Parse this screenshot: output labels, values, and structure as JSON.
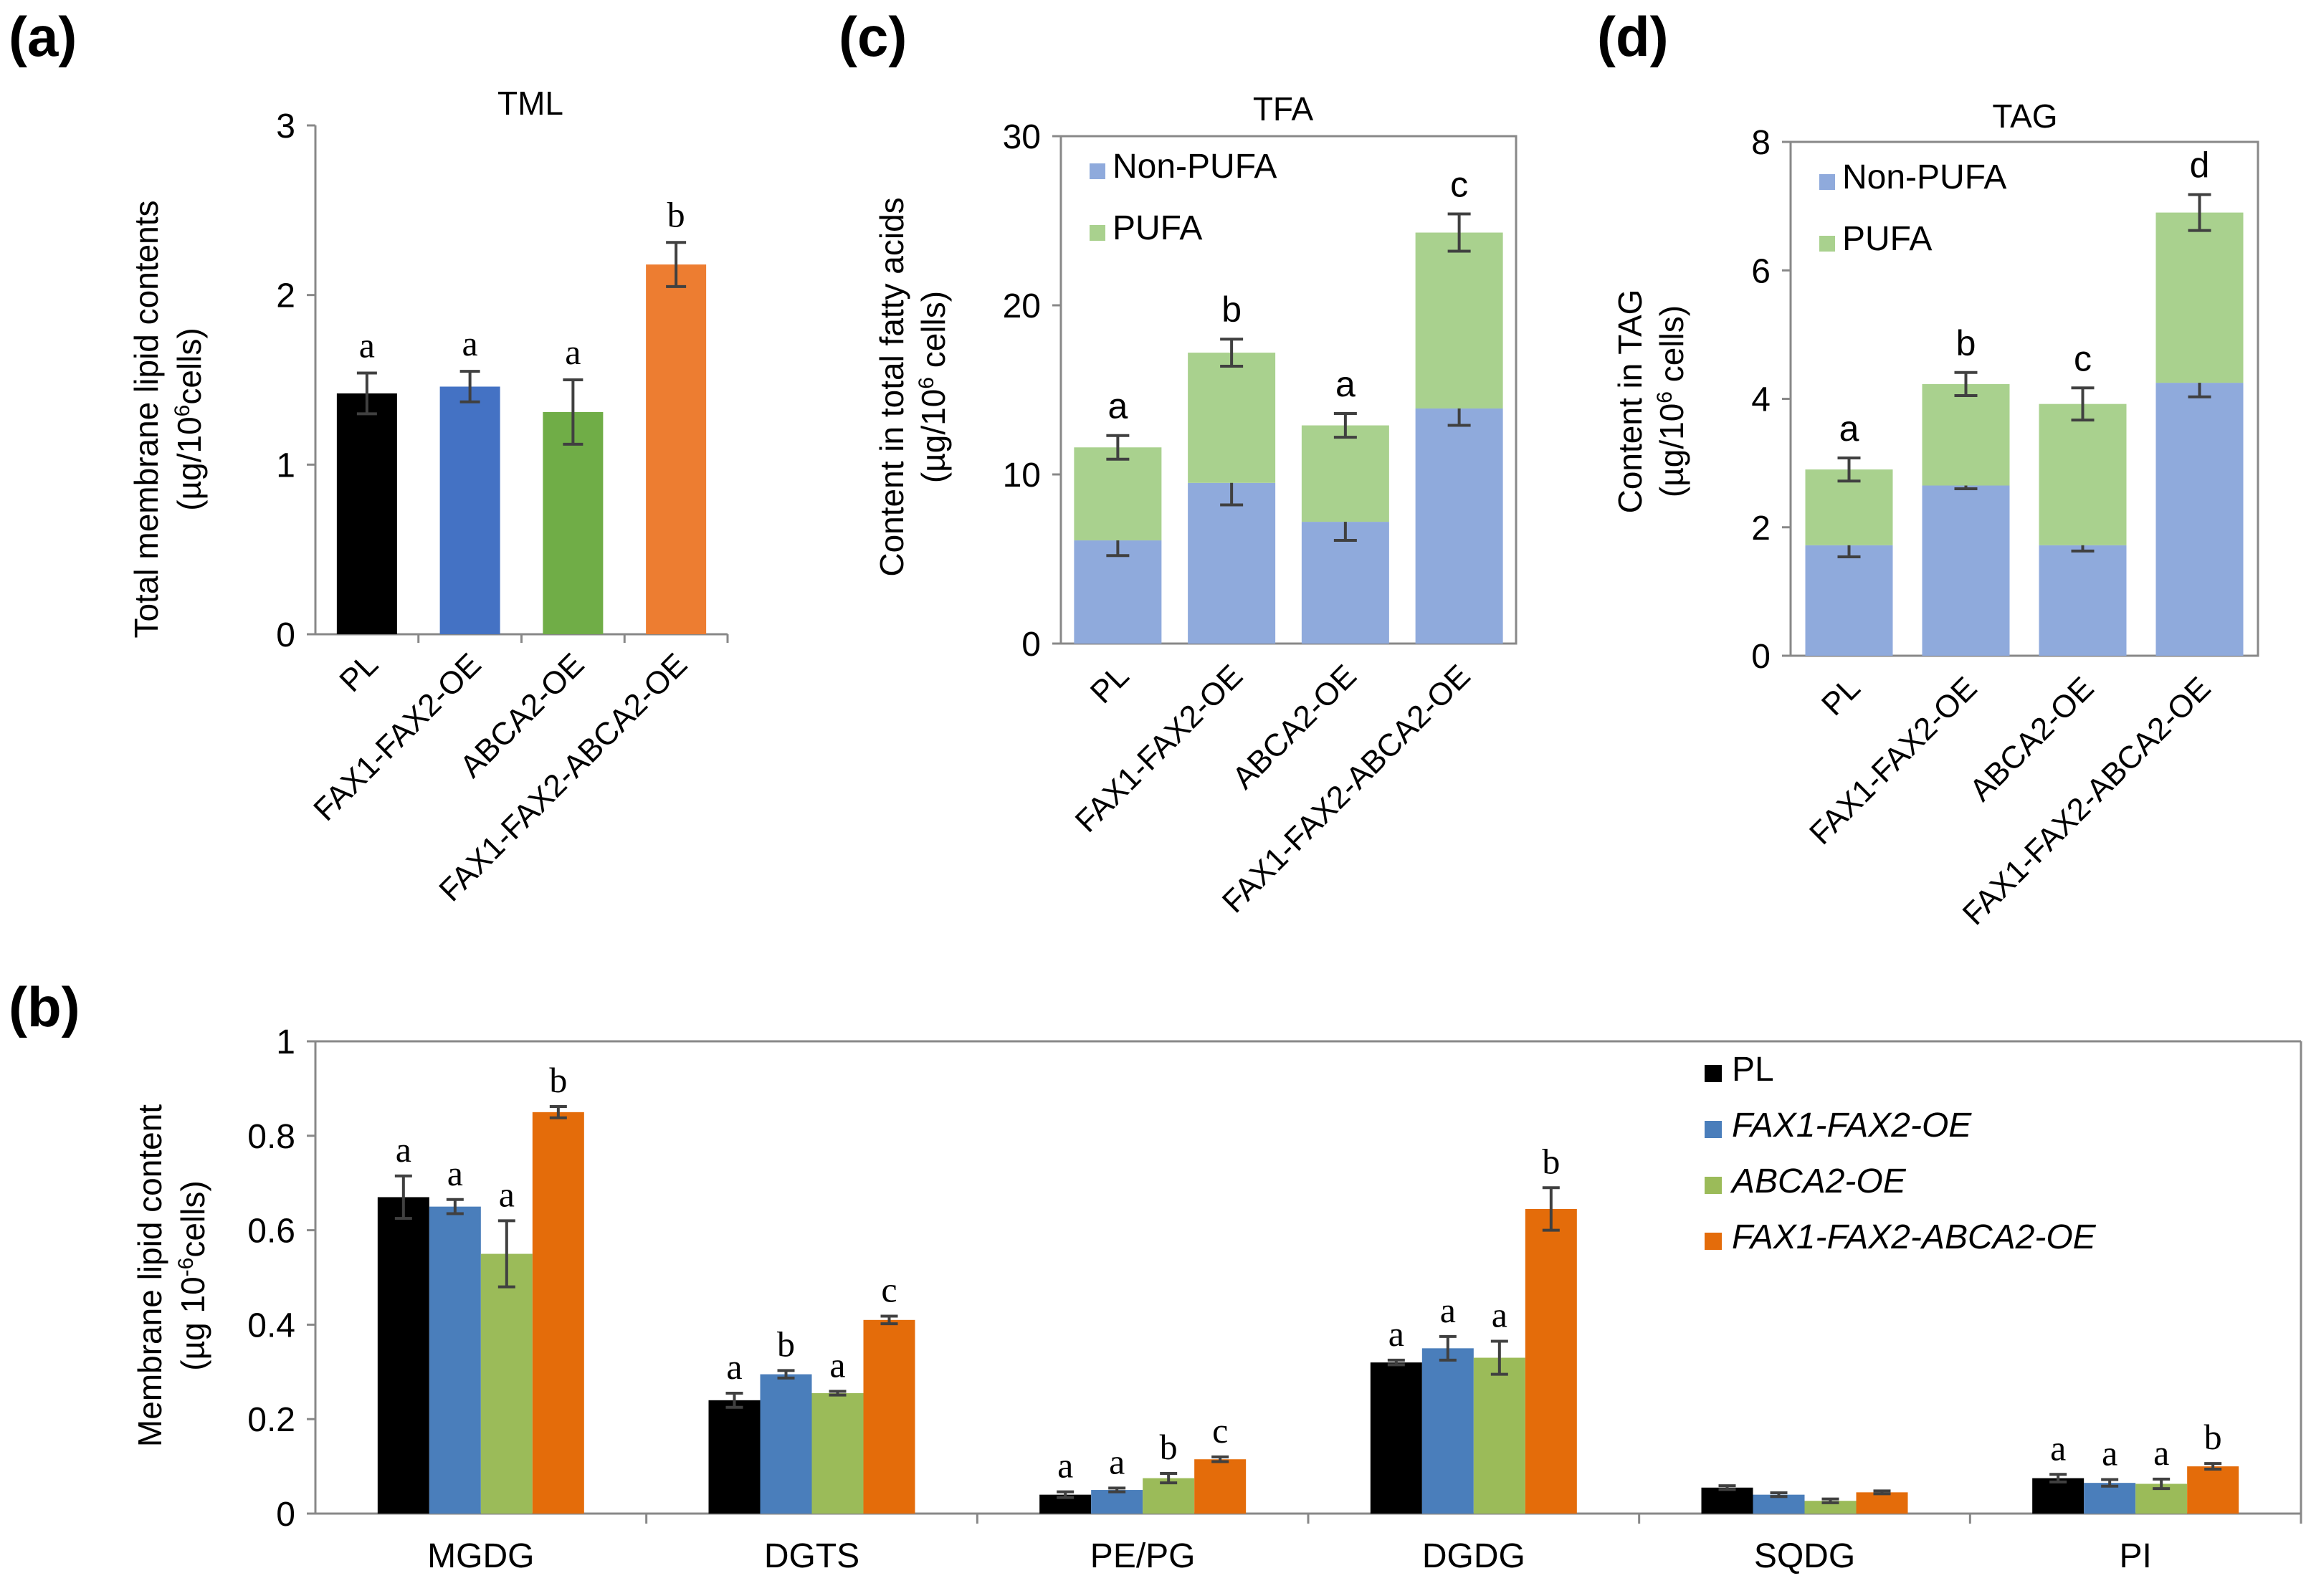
{
  "panels": {
    "a": {
      "label": "(a)",
      "chart_data": {
        "type": "bar",
        "title": "TML",
        "ylabel_line1": "Total membrane lipid contents",
        "ylabel_line2_pre": "(µg/10",
        "ylabel_line2_sup": "6",
        "ylabel_line2_post": "cells)",
        "xlabel": "",
        "categories": [
          "PL",
          "FAX1-FAX2-OE",
          "ABCA2-OE",
          "FAX1-FAX2-ABCA2-OE"
        ],
        "values": [
          1.42,
          1.46,
          1.31,
          2.18
        ],
        "errors": [
          0.12,
          0.09,
          0.19,
          0.13
        ],
        "colors": [
          "#000000",
          "#4472C4",
          "#70AD47",
          "#ED7D31"
        ],
        "significance": [
          "a",
          "a",
          "a",
          "b"
        ],
        "ylim": [
          0,
          3
        ],
        "yticks": [
          "0",
          "1",
          "2",
          "3"
        ],
        "grid": false
      }
    },
    "c": {
      "label": "(c)",
      "chart_data": {
        "type": "bar",
        "stacked": true,
        "title": "TFA",
        "ylabel_line1": "Content in total fatty acids",
        "ylabel_line2_pre": "(µg/10",
        "ylabel_line2_sup": "6",
        "ylabel_line2_post": " cells)",
        "categories": [
          "PL",
          "FAX1-FAX2-OE",
          "ABCA2-OE",
          "FAX1-FAX2-ABCA2-OE"
        ],
        "series": [
          {
            "name": "Non-PUFA",
            "values": [
              6.1,
              9.5,
              7.2,
              13.9
            ],
            "errors": [
              0.9,
              1.3,
              1.1,
              1.0
            ],
            "color": "#8FAADC"
          },
          {
            "name": "PUFA",
            "values": [
              5.5,
              7.7,
              5.7,
              10.4
            ],
            "errors": [
              0.7,
              0.8,
              0.7,
              1.1
            ],
            "color": "#A9D18E"
          }
        ],
        "significance": [
          "a",
          "b",
          "a",
          "c"
        ],
        "ylim": [
          0,
          30
        ],
        "yticks": [
          "0",
          "10",
          "20",
          "30"
        ],
        "legend_position": "top-left",
        "grid": false
      }
    },
    "d": {
      "label": "(d)",
      "chart_data": {
        "type": "bar",
        "stacked": true,
        "title": "TAG",
        "ylabel_line1": "Content in TAG",
        "ylabel_line2_pre": "(µg/10",
        "ylabel_line2_sup": "6",
        "ylabel_line2_post": " cells)",
        "categories": [
          "PL",
          "FAX1-FAX2-OE",
          "ABCA2-OE",
          "FAX1-FAX2-ABCA2-OE"
        ],
        "series": [
          {
            "name": "Non-PUFA",
            "values": [
              1.72,
              2.65,
              1.72,
              4.25
            ],
            "errors": [
              0.18,
              0.05,
              0.09,
              0.22
            ],
            "color": "#8FAADC"
          },
          {
            "name": "PUFA",
            "values": [
              1.18,
              1.58,
              2.2,
              2.65
            ],
            "errors": [
              0.18,
              0.18,
              0.25,
              0.28
            ],
            "color": "#A9D18E"
          }
        ],
        "significance": [
          "a",
          "b",
          "c",
          "d"
        ],
        "ylim": [
          0,
          8
        ],
        "yticks": [
          "0",
          "2",
          "4",
          "6",
          "8"
        ],
        "legend_position": "top-left",
        "grid": false
      }
    },
    "b": {
      "label": "(b)",
      "chart_data": {
        "type": "bar",
        "grouped": true,
        "ylabel_line1": "Membrane lipid content",
        "ylabel_line2_pre": "(µg 10",
        "ylabel_line2_sup": "-6",
        "ylabel_line2_post": "cells)",
        "categories": [
          "MGDG",
          "DGTS",
          "PE/PG",
          "DGDG",
          "SQDG",
          "PI"
        ],
        "series": [
          {
            "name": "PL",
            "italic": false,
            "color": "#000000",
            "values": [
              0.67,
              0.24,
              0.04,
              0.32,
              0.055,
              0.075
            ],
            "errors": [
              0.045,
              0.015,
              0.006,
              0.005,
              0.004,
              0.008
            ],
            "significance": [
              "a",
              "a",
              "a",
              "a",
              "",
              "a"
            ]
          },
          {
            "name": "FAX1-FAX2-OE",
            "italic": true,
            "color": "#4A7EBB",
            "values": [
              0.65,
              0.295,
              0.05,
              0.35,
              0.04,
              0.065
            ],
            "errors": [
              0.015,
              0.008,
              0.004,
              0.025,
              0.004,
              0.007
            ],
            "significance": [
              "a",
              "b",
              "a",
              "a",
              "",
              "a"
            ]
          },
          {
            "name": "ABCA2-OE",
            "italic": true,
            "color": "#9BBB59",
            "values": [
              0.55,
              0.255,
              0.075,
              0.33,
              0.027,
              0.063
            ],
            "errors": [
              0.07,
              0.004,
              0.01,
              0.035,
              0.004,
              0.01
            ],
            "significance": [
              "a",
              "a",
              "b",
              "a",
              "",
              "a"
            ]
          },
          {
            "name": "FAX1-FAX2-ABCA2-OE",
            "italic": true,
            "color": "#E46C0A",
            "values": [
              0.85,
              0.41,
              0.115,
              0.645,
              0.045,
              0.1
            ],
            "errors": [
              0.012,
              0.008,
              0.005,
              0.045,
              0.003,
              0.006
            ],
            "significance": [
              "b",
              "c",
              "c",
              "b",
              "",
              "b"
            ]
          }
        ],
        "ylim": [
          0,
          1
        ],
        "yticks": [
          "0",
          "0.2",
          "0.4",
          "0.6",
          "0.8",
          "1"
        ],
        "legend_position": "top-right",
        "grid": false
      }
    }
  }
}
